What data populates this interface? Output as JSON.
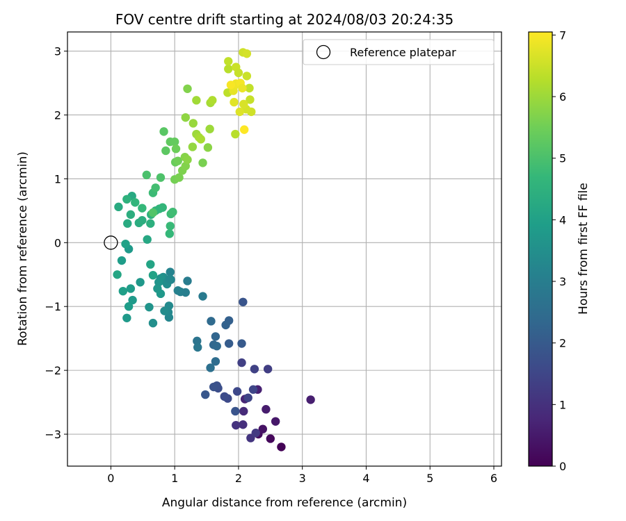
{
  "chart_data": {
    "type": "scatter",
    "title": "FOV centre drift starting at 2024/08/03 20:24:35",
    "xlabel": "Angular distance from reference (arcmin)",
    "ylabel": "Rotation from reference (arcmin)",
    "xlim": [
      -0.68,
      6.12
    ],
    "ylim": [
      -3.5,
      3.3
    ],
    "xticks": [
      0,
      1,
      2,
      3,
      4,
      5,
      6
    ],
    "yticks": [
      -3,
      -2,
      -1,
      0,
      1,
      2,
      3
    ],
    "xtick_labels": [
      "0",
      "1",
      "2",
      "3",
      "4",
      "5",
      "6"
    ],
    "ytick_labels": [
      "−3",
      "−2",
      "−1",
      "0",
      "1",
      "2",
      "3"
    ],
    "grid": true,
    "legend": {
      "position": "top-right",
      "label": "Reference platepar",
      "marker": "hollow-circle"
    },
    "reference_point": {
      "x": 0,
      "y": 0
    },
    "colorbar": {
      "label": "Hours from first FF file",
      "colormap": "viridis",
      "range": [
        0,
        7.05
      ],
      "ticks": [
        0,
        1,
        2,
        3,
        4,
        5,
        6,
        7
      ],
      "tick_labels": [
        "0",
        "1",
        "2",
        "3",
        "4",
        "5",
        "6",
        "7"
      ]
    },
    "colors": {
      "axes": "#000000",
      "grid": "#b0b0b0",
      "viridis_low": "#440154",
      "viridis_high": "#fde725"
    },
    "series": [
      {
        "columns": [
          "x",
          "y",
          "hours"
        ],
        "points": [
          [
            2.67,
            -3.2,
            0.05
          ],
          [
            2.5,
            -3.07,
            0.15
          ],
          [
            2.31,
            -3.0,
            0.25
          ],
          [
            2.38,
            -2.92,
            0.35
          ],
          [
            2.58,
            -2.8,
            0.45
          ],
          [
            2.43,
            -2.61,
            0.55
          ],
          [
            3.13,
            -2.46,
            0.6
          ],
          [
            2.3,
            -2.3,
            0.65
          ],
          [
            2.1,
            -2.45,
            0.75
          ],
          [
            2.08,
            -2.64,
            0.85
          ],
          [
            2.07,
            -2.85,
            0.95
          ],
          [
            1.96,
            -2.86,
            1.05
          ],
          [
            2.19,
            -3.06,
            1.1
          ],
          [
            2.27,
            -2.98,
            1.2
          ],
          [
            2.46,
            -1.98,
            1.3
          ],
          [
            2.25,
            -1.98,
            1.4
          ],
          [
            2.05,
            -1.88,
            1.35
          ],
          [
            2.15,
            -2.43,
            1.45
          ],
          [
            2.23,
            -2.3,
            1.5
          ],
          [
            1.98,
            -2.33,
            1.55
          ],
          [
            1.83,
            -2.44,
            1.6
          ],
          [
            1.78,
            -2.41,
            1.65
          ],
          [
            1.68,
            -2.28,
            1.7
          ],
          [
            1.66,
            -2.24,
            1.75
          ],
          [
            1.61,
            -2.26,
            1.8
          ],
          [
            1.95,
            -2.64,
            1.85
          ],
          [
            1.48,
            -2.38,
            1.9
          ],
          [
            2.07,
            -0.93,
            1.85
          ],
          [
            2.05,
            -1.58,
            2.0
          ],
          [
            1.85,
            -1.58,
            2.05
          ],
          [
            1.85,
            -1.22,
            2.15
          ],
          [
            1.8,
            -1.29,
            2.2
          ],
          [
            1.64,
            -1.47,
            2.3
          ],
          [
            1.61,
            -1.6,
            2.35
          ],
          [
            1.66,
            -1.62,
            2.4
          ],
          [
            1.57,
            -1.23,
            2.45
          ],
          [
            1.64,
            -1.86,
            2.5
          ],
          [
            1.56,
            -1.96,
            2.6
          ],
          [
            1.35,
            -1.54,
            2.7
          ],
          [
            1.36,
            -1.64,
            2.8
          ],
          [
            1.44,
            -0.84,
            2.9
          ],
          [
            1.2,
            -0.6,
            2.95
          ],
          [
            1.17,
            -0.78,
            3.0
          ],
          [
            1.09,
            -0.77,
            3.05
          ],
          [
            1.05,
            -0.75,
            3.1
          ],
          [
            0.93,
            -0.46,
            3.15
          ],
          [
            0.94,
            -0.58,
            3.2
          ],
          [
            0.91,
            -1.17,
            3.25
          ],
          [
            0.9,
            -1.09,
            3.3
          ],
          [
            0.91,
            -0.99,
            3.35
          ],
          [
            0.84,
            -1.07,
            3.4
          ],
          [
            0.88,
            -0.65,
            3.45
          ],
          [
            0.82,
            -0.54,
            3.5
          ],
          [
            0.84,
            -0.6,
            3.55
          ],
          [
            0.78,
            -0.56,
            3.6
          ],
          [
            0.75,
            -0.62,
            3.65
          ],
          [
            0.73,
            -0.72,
            3.7
          ],
          [
            0.78,
            -0.8,
            3.75
          ],
          [
            0.88,
            -0.62,
            3.45
          ],
          [
            0.92,
            -0.57,
            3.3
          ],
          [
            0.66,
            -1.26,
            3.5
          ],
          [
            0.6,
            -1.01,
            3.65
          ],
          [
            0.46,
            -0.62,
            3.75
          ],
          [
            0.34,
            -0.9,
            3.8
          ],
          [
            0.31,
            -0.72,
            3.85
          ],
          [
            0.25,
            -1.18,
            3.8
          ],
          [
            0.28,
            -1.0,
            3.9
          ],
          [
            0.19,
            -0.76,
            3.95
          ],
          [
            0.17,
            -0.28,
            3.9
          ],
          [
            0.28,
            -0.1,
            3.8
          ],
          [
            0.23,
            -0.02,
            4.0
          ],
          [
            0.66,
            -0.51,
            4.05
          ],
          [
            0.62,
            -0.34,
            4.1
          ],
          [
            0.1,
            -0.5,
            4.15
          ],
          [
            0.57,
            0.05,
            4.2
          ],
          [
            0.26,
            0.3,
            4.3
          ],
          [
            0.44,
            0.31,
            4.35
          ],
          [
            0.49,
            0.35,
            4.4
          ],
          [
            0.62,
            0.3,
            4.45
          ],
          [
            0.63,
            0.44,
            4.5
          ],
          [
            0.7,
            0.5,
            4.55
          ],
          [
            0.76,
            0.53,
            4.6
          ],
          [
            0.81,
            0.55,
            4.65
          ],
          [
            0.92,
            0.14,
            4.7
          ],
          [
            0.93,
            0.26,
            4.75
          ],
          [
            0.94,
            0.45,
            4.8
          ],
          [
            0.97,
            0.48,
            4.85
          ],
          [
            0.31,
            0.44,
            4.4
          ],
          [
            0.12,
            0.56,
            4.3
          ],
          [
            0.33,
            0.73,
            4.25
          ],
          [
            0.25,
            0.68,
            4.5
          ],
          [
            0.38,
            0.63,
            4.6
          ],
          [
            0.49,
            0.54,
            4.7
          ],
          [
            0.66,
            0.78,
            4.8
          ],
          [
            0.7,
            0.86,
            4.9
          ],
          [
            0.56,
            1.06,
            5.0
          ],
          [
            0.78,
            1.02,
            5.05
          ],
          [
            0.66,
            0.47,
            5.1
          ],
          [
            0.83,
            1.74,
            5.2
          ],
          [
            0.86,
            1.44,
            5.25
          ],
          [
            0.93,
            1.58,
            5.3
          ],
          [
            1.0,
            1.58,
            5.35
          ],
          [
            1.01,
            1.26,
            5.4
          ],
          [
            1.02,
            1.47,
            5.45
          ],
          [
            1.05,
            1.28,
            5.5
          ],
          [
            1.0,
            0.99,
            5.55
          ],
          [
            1.07,
            1.02,
            5.6
          ],
          [
            1.12,
            1.13,
            5.65
          ],
          [
            1.17,
            1.2,
            5.7
          ],
          [
            1.16,
            1.34,
            5.75
          ],
          [
            1.2,
            1.3,
            5.8
          ],
          [
            1.17,
            1.96,
            5.85
          ],
          [
            1.2,
            2.41,
            5.7
          ],
          [
            1.28,
            1.5,
            5.9
          ],
          [
            1.29,
            1.87,
            5.95
          ],
          [
            1.34,
            1.7,
            6.0
          ],
          [
            1.34,
            2.23,
            6.05
          ],
          [
            1.38,
            1.65,
            6.1
          ],
          [
            1.41,
            1.62,
            6.15
          ],
          [
            1.44,
            1.25,
            5.6
          ],
          [
            1.52,
            1.49,
            5.8
          ],
          [
            1.55,
            1.78,
            6.0
          ],
          [
            1.56,
            2.19,
            6.1
          ],
          [
            1.59,
            2.23,
            6.2
          ],
          [
            1.95,
            1.7,
            6.3
          ],
          [
            1.83,
            2.35,
            6.35
          ],
          [
            1.84,
            2.72,
            6.3
          ],
          [
            1.84,
            2.84,
            6.4
          ],
          [
            1.96,
            2.75,
            6.5
          ],
          [
            2.0,
            2.66,
            6.45
          ],
          [
            2.07,
            2.98,
            6.55
          ],
          [
            2.13,
            2.96,
            6.6
          ],
          [
            2.13,
            2.61,
            6.5
          ],
          [
            2.17,
            2.42,
            6.4
          ],
          [
            2.18,
            2.24,
            6.45
          ],
          [
            2.2,
            2.05,
            6.55
          ],
          [
            2.12,
            2.09,
            6.6
          ],
          [
            2.08,
            2.17,
            6.65
          ],
          [
            2.02,
            2.05,
            6.7
          ],
          [
            1.93,
            2.2,
            6.75
          ],
          [
            1.92,
            2.38,
            6.8
          ],
          [
            1.93,
            2.45,
            6.85
          ],
          [
            1.96,
            2.49,
            6.9
          ],
          [
            2.03,
            2.5,
            6.95
          ],
          [
            1.88,
            2.47,
            7.0
          ],
          [
            2.06,
            2.42,
            6.85
          ],
          [
            2.09,
            1.77,
            7.05
          ]
        ]
      }
    ]
  }
}
